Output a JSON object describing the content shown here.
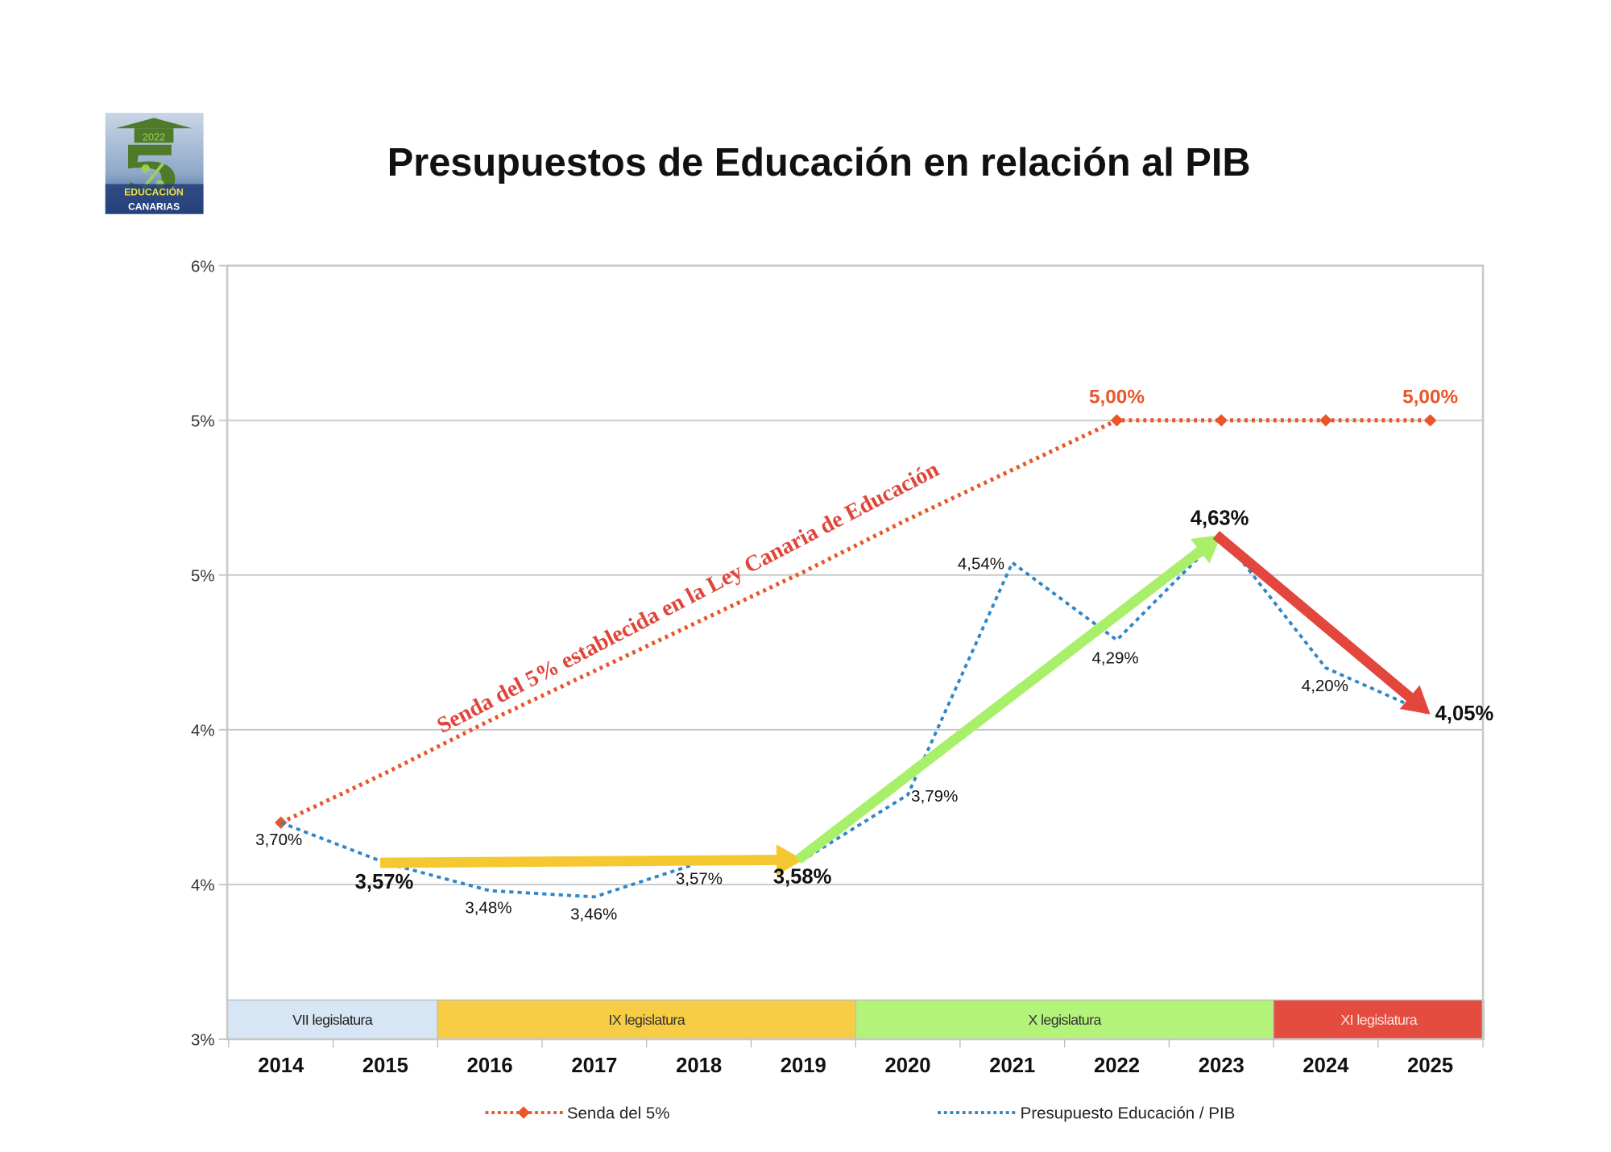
{
  "logo": {
    "text_year": "2022",
    "text_big": "5%",
    "text_line1": "EDUCACIÓN",
    "text_line2": "CANARIAS"
  },
  "chart_data": {
    "type": "line",
    "title": "Presupuestos de Educación en relación al PIB",
    "categories": [
      "2014",
      "2015",
      "2016",
      "2017",
      "2018",
      "2019",
      "2020",
      "2021",
      "2022",
      "2023",
      "2024",
      "2025"
    ],
    "ylim": [
      3,
      5.5
    ],
    "y_ticks": [
      {
        "value": 3.0,
        "label": "3%"
      },
      {
        "value": 3.5,
        "label": "4%"
      },
      {
        "value": 4.0,
        "label": "4%"
      },
      {
        "value": 4.5,
        "label": "5%"
      },
      {
        "value": 5.0,
        "label": "5%"
      },
      {
        "value": 5.5,
        "label": "6%"
      }
    ],
    "grid": true,
    "legend_position": "bottom",
    "series": [
      {
        "name": "Senda del 5%",
        "color": "#e8562a",
        "style": "dotted with diamond markers",
        "values": [
          3.7,
          3.86,
          4.03,
          4.19,
          4.35,
          4.51,
          4.68,
          4.84,
          5.0,
          5.0,
          5.0,
          5.0
        ],
        "data_labels": {
          "8": "5,00%",
          "11": "5,00%"
        }
      },
      {
        "name": "Presupuesto Educación / PIB",
        "color": "#2e86c8",
        "style": "dotted",
        "values": [
          3.7,
          3.57,
          3.48,
          3.46,
          3.57,
          3.58,
          3.79,
          4.54,
          4.29,
          4.63,
          4.2,
          4.05
        ],
        "data_labels": [
          "3,70%",
          "3,57%",
          "3,48%",
          "3,46%",
          "3,57%",
          "3,58%",
          "3,79%",
          "4,54%",
          "4,29%",
          "4,63%",
          "4,20%",
          "4,05%"
        ]
      }
    ],
    "annotations": {
      "senda_text": "Senda del 5% establecida en la Ley Canaria de Educación",
      "arrows": [
        {
          "from": "2015",
          "to": "2019",
          "color": "#f5c832"
        },
        {
          "from": "2019",
          "to": "2023",
          "color": "#a8f06a"
        },
        {
          "from": "2023",
          "to": "2025",
          "color": "#e2463c"
        }
      ],
      "legislaturas": [
        {
          "label": "VII legislatura",
          "from": "2014",
          "to": "2015",
          "color": "#d6e6f4",
          "text_color": "#222222"
        },
        {
          "label": "IX legislatura",
          "from": "2016",
          "to": "2019",
          "color": "#f7cd45",
          "text_color": "#333333"
        },
        {
          "label": "X legislatura",
          "from": "2020",
          "to": "2023",
          "color": "#b3f37a",
          "text_color": "#333333"
        },
        {
          "label": "XI legislatura",
          "from": "2024",
          "to": "2025",
          "color": "#e44c40",
          "text_color": "#ffe0dc"
        }
      ]
    }
  }
}
